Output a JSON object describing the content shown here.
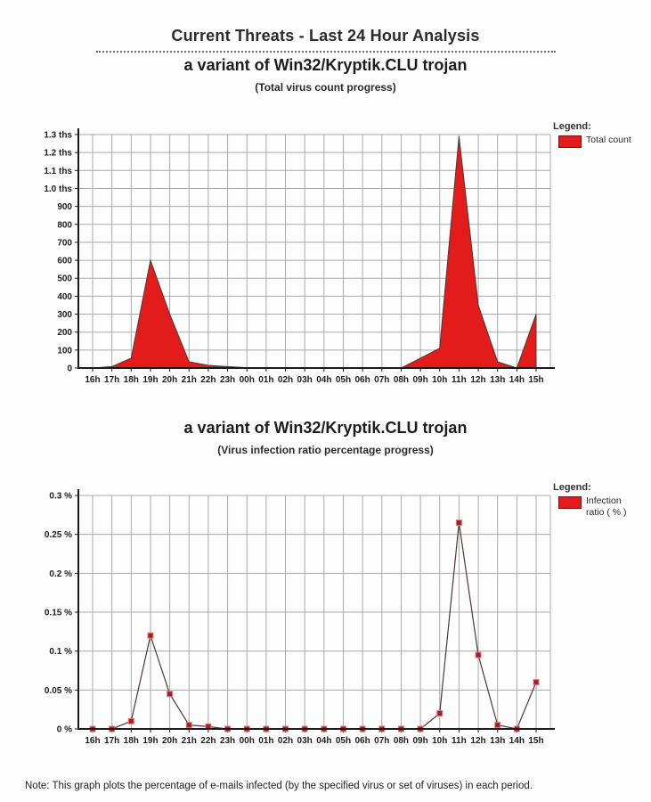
{
  "page": {
    "main_title": "Current Threats - Last 24 Hour Analysis",
    "note": "Note: This graph plots the percentage of e-mails infected (by the specified virus or set of viruses) in each period."
  },
  "colors": {
    "area_red": "#e31b1b",
    "marker_dark_red": "#a02028",
    "marker_halo": "#e37b7b",
    "series_outline": "#4a3838",
    "grid_gray": "#a9a9a9",
    "axis_black": "#1a1a1a"
  },
  "chart_data": [
    {
      "type": "area",
      "title": "a variant of Win32/Kryptik.CLU trojan",
      "subtitle": "(Total virus count progress)",
      "legend_title": "Legend:",
      "legend_label": "Total count",
      "legend_position": "right",
      "grid": "on",
      "categories": [
        "16h",
        "17h",
        "18h",
        "19h",
        "20h",
        "21h",
        "22h",
        "23h",
        "00h",
        "01h",
        "02h",
        "03h",
        "04h",
        "05h",
        "06h",
        "07h",
        "08h",
        "09h",
        "10h",
        "11h",
        "12h",
        "13h",
        "14h",
        "15h"
      ],
      "values": [
        0,
        8,
        55,
        600,
        300,
        35,
        15,
        8,
        2,
        0,
        0,
        0,
        0,
        0,
        0,
        0,
        0,
        55,
        110,
        1290,
        350,
        35,
        0,
        300
      ],
      "xlabel": "",
      "ylabel": "",
      "ylim": [
        0,
        1300
      ],
      "ytick_step": 100,
      "ytick_labels": [
        "0",
        "100",
        "200",
        "300",
        "400",
        "500",
        "600",
        "700",
        "800",
        "900",
        "1.0 ths",
        "1.1 ths",
        "1.2 ths",
        "1.3 ths"
      ],
      "fill_color": "#e31b1b",
      "line_color": "#4a3838"
    },
    {
      "type": "line",
      "title": "a variant of Win32/Kryptik.CLU trojan",
      "subtitle": "(Virus infection ratio percentage progress)",
      "legend_title": "Legend:",
      "legend_label": "Infection ratio ( % )",
      "legend_position": "right",
      "grid": "on",
      "categories": [
        "16h",
        "17h",
        "18h",
        "19h",
        "20h",
        "21h",
        "22h",
        "23h",
        "00h",
        "01h",
        "02h",
        "03h",
        "04h",
        "05h",
        "06h",
        "07h",
        "08h",
        "09h",
        "10h",
        "11h",
        "12h",
        "13h",
        "14h",
        "15h"
      ],
      "values": [
        0,
        0,
        0.01,
        0.12,
        0.045,
        0.005,
        0.003,
        0,
        0,
        0,
        0,
        0,
        0,
        0,
        0,
        0,
        0,
        0,
        0.02,
        0.265,
        0.095,
        0.005,
        0,
        0.06
      ],
      "xlabel": "",
      "ylabel": "",
      "ylim": [
        0,
        0.3
      ],
      "ytick_step": 0.05,
      "ytick_labels": [
        "0 %",
        "0.05 %",
        "0.1 %",
        "0.15 %",
        "0.2 %",
        "0.25 %",
        "0.3 %"
      ],
      "marker_color": "#a02028",
      "marker_halo": "#e37b7b",
      "line_color": "#4a3838"
    }
  ]
}
